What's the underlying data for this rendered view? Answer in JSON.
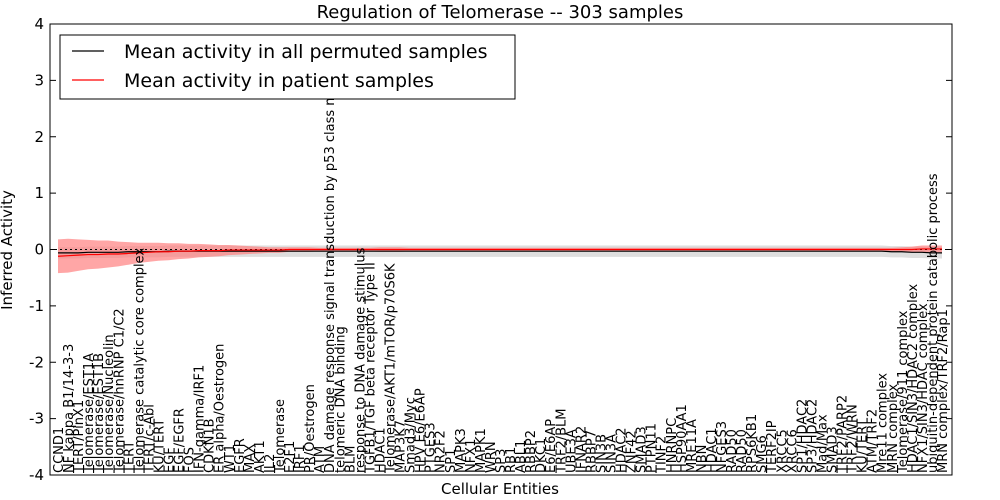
{
  "chart_data": {
    "type": "line",
    "title": "Regulation of Telomerase -- 303 samples",
    "xlabel": "Cellular Entities",
    "ylabel": "Inferred Activity",
    "ylim": [
      -4,
      4
    ],
    "yticks": [
      -4,
      -3,
      -2,
      -1,
      0,
      1,
      2,
      3,
      4
    ],
    "legend": {
      "position": "top-left",
      "entries": [
        {
          "name": "Mean activity in all permuted samples",
          "color": "#000000"
        },
        {
          "name": "Mean activity in patient samples",
          "color": "#ff0000"
        }
      ]
    },
    "categories": [
      "CCND1",
      "NF kappa B1/14-3-3",
      "TERT/PinX1",
      "Telomerase/EST1A",
      "Telomerase/EST1B",
      "Telomerase/Nucleolin",
      "Telomerase/hnRNP C1/C2",
      "TERT",
      "Telomerase catalytic core complex",
      "TERT/c-Abl",
      "KU/TERT",
      "EGF",
      "EGF/EGFR",
      "FOS",
      "IFN-gamma/IRF1",
      "CDKN1B",
      "ER alpha/Oestrogen",
      "WT1",
      "EGFR",
      "MAX",
      "AKT1",
      "IL2",
      "Telomerase",
      "E2F1",
      "IRF1",
      "PR/Oestrogen",
      "ATM",
      "DNA damage response signal transduction by p53 class mediator",
      "telomeric DNA binding",
      "BLM",
      "response to DNA damage stimulus",
      "TGFB1/TGF beta receptor Type II",
      "HDAC1",
      "Telomerase/AKT1/mTOR/p70S6K",
      "MAP3K7",
      "Smad3/Myc",
      "HPV E6/E6AP",
      "PTGES3",
      "NR2F2",
      "SP1",
      "MAPK3",
      "NFX1",
      "MAPK1",
      "WRN",
      "SP3",
      "RB1",
      "ABL1",
      "RBBP2",
      "DKC1",
      "E6/E6AP",
      "TRF2/BLM",
      "UBE3A",
      "IFNAR2",
      "RBBP7",
      "SIN3B",
      "SIN3A",
      "HDAC2",
      "ZNF42",
      "SMAD3",
      "PTPN11",
      "TINF2",
      "HNRNPC",
      "HSP90AA1",
      "MRE11A",
      "NBN",
      "HDAC1",
      "NFGES3",
      "RAD50",
      "RAD50",
      "RPS6KB1",
      "SMG6",
      "TERF2IP",
      "XRCC5",
      "XRCC6",
      "SP1/HDAC2",
      "SP3/HDAC2",
      "Mad/Max",
      "SMAD3",
      "TRF2/PARP2",
      "TRF2/WRN",
      "KU/TERT",
      "ATM/TRF2",
      "Mre11 complex",
      "MRN complex",
      "Telomerase/911 complex",
      "HDAC1/SIN3/HDAC2 complex",
      "NFX1/SIN3/HDAC complex",
      "ubiquitin-dependent protein catabolic process",
      "MRN complex/TRF2/Rap1"
    ],
    "values_patient": [
      -0.12,
      -0.11,
      -0.1,
      -0.09,
      -0.09,
      -0.08,
      -0.08,
      -0.07,
      -0.06,
      -0.05,
      -0.04,
      -0.04,
      -0.03,
      -0.03,
      -0.02,
      -0.02,
      -0.02,
      -0.01,
      -0.01,
      -0.01,
      -0.01,
      -0.01,
      -0.01,
      0.0,
      0.0,
      0.0,
      0.0,
      0.0,
      0.0,
      0.0,
      0.0,
      0.0,
      0.0,
      0.0,
      0.0,
      0.0,
      0.0,
      0.0,
      0.0,
      0.0,
      0.0,
      0.0,
      0.0,
      0.0,
      0.0,
      0.0,
      0.0,
      0.0,
      0.0,
      0.0,
      0.0,
      0.0,
      0.0,
      0.0,
      0.0,
      0.0,
      0.0,
      0.0,
      0.0,
      0.0,
      0.0,
      0.0,
      0.0,
      0.0,
      0.0,
      0.0,
      0.0,
      0.0,
      0.0,
      0.0,
      0.0,
      0.0,
      0.0,
      0.0,
      0.0,
      0.0,
      0.0,
      0.0,
      0.0,
      0.0,
      0.0,
      0.0,
      0.0,
      0.0,
      0.0,
      0.0,
      0.01,
      0.01,
      0.01
    ],
    "band_patient_halfwidth": [
      0.3,
      0.3,
      0.28,
      0.26,
      0.25,
      0.24,
      0.22,
      0.2,
      0.18,
      0.17,
      0.16,
      0.15,
      0.14,
      0.13,
      0.12,
      0.11,
      0.1,
      0.09,
      0.08,
      0.07,
      0.06,
      0.05,
      0.05,
      0.04,
      0.04,
      0.04,
      0.03,
      0.03,
      0.03,
      0.03,
      0.03,
      0.03,
      0.04,
      0.04,
      0.04,
      0.03,
      0.03,
      0.03,
      0.03,
      0.03,
      0.03,
      0.03,
      0.03,
      0.03,
      0.03,
      0.03,
      0.03,
      0.03,
      0.03,
      0.03,
      0.03,
      0.03,
      0.03,
      0.03,
      0.03,
      0.03,
      0.03,
      0.03,
      0.03,
      0.03,
      0.03,
      0.03,
      0.03,
      0.03,
      0.03,
      0.03,
      0.03,
      0.03,
      0.03,
      0.03,
      0.03,
      0.03,
      0.03,
      0.03,
      0.03,
      0.03,
      0.03,
      0.03,
      0.03,
      0.03,
      0.03,
      0.03,
      0.03,
      0.03,
      0.04,
      0.05,
      0.06,
      0.06,
      0.06
    ],
    "values_permuted": [
      -0.06,
      -0.06,
      -0.06,
      -0.05,
      -0.05,
      -0.05,
      -0.05,
      -0.04,
      -0.04,
      -0.04,
      -0.04,
      -0.03,
      -0.03,
      -0.03,
      -0.03,
      -0.03,
      -0.03,
      -0.03,
      -0.03,
      -0.03,
      -0.03,
      -0.03,
      -0.03,
      -0.03,
      -0.03,
      -0.03,
      -0.03,
      -0.03,
      -0.03,
      -0.03,
      -0.03,
      -0.03,
      -0.03,
      -0.03,
      -0.03,
      -0.03,
      -0.03,
      -0.03,
      -0.03,
      -0.03,
      -0.03,
      -0.03,
      -0.03,
      -0.03,
      -0.03,
      -0.03,
      -0.03,
      -0.03,
      -0.03,
      -0.03,
      -0.03,
      -0.03,
      -0.03,
      -0.03,
      -0.03,
      -0.03,
      -0.03,
      -0.03,
      -0.03,
      -0.03,
      -0.03,
      -0.03,
      -0.03,
      -0.03,
      -0.03,
      -0.03,
      -0.03,
      -0.03,
      -0.03,
      -0.03,
      -0.03,
      -0.03,
      -0.03,
      -0.03,
      -0.03,
      -0.03,
      -0.03,
      -0.03,
      -0.03,
      -0.03,
      -0.03,
      -0.03,
      -0.03,
      -0.04,
      -0.04,
      -0.05,
      -0.05,
      -0.06,
      -0.06
    ],
    "band_permuted_halfwidth": [
      0.1,
      0.1,
      0.1,
      0.1,
      0.1,
      0.1,
      0.1,
      0.1,
      0.1,
      0.1,
      0.1,
      0.1,
      0.1,
      0.1,
      0.1,
      0.1,
      0.1,
      0.1,
      0.1,
      0.1,
      0.1,
      0.1,
      0.1,
      0.1,
      0.1,
      0.1,
      0.1,
      0.1,
      0.1,
      0.1,
      0.1,
      0.1,
      0.1,
      0.1,
      0.1,
      0.1,
      0.1,
      0.1,
      0.1,
      0.1,
      0.1,
      0.1,
      0.1,
      0.1,
      0.1,
      0.1,
      0.1,
      0.1,
      0.1,
      0.1,
      0.1,
      0.1,
      0.1,
      0.1,
      0.1,
      0.1,
      0.1,
      0.1,
      0.1,
      0.1,
      0.1,
      0.1,
      0.1,
      0.1,
      0.1,
      0.1,
      0.1,
      0.1,
      0.1,
      0.1,
      0.1,
      0.1,
      0.1,
      0.1,
      0.1,
      0.1,
      0.1,
      0.1,
      0.1,
      0.1,
      0.1,
      0.1,
      0.1,
      0.1,
      0.1,
      0.1,
      0.1,
      0.1,
      0.1
    ],
    "reference_line": 0,
    "colors": {
      "patient_line": "#ff0000",
      "patient_band": "#ff8080",
      "permuted_line": "#000000",
      "permuted_band": "#c8c8c8"
    }
  }
}
